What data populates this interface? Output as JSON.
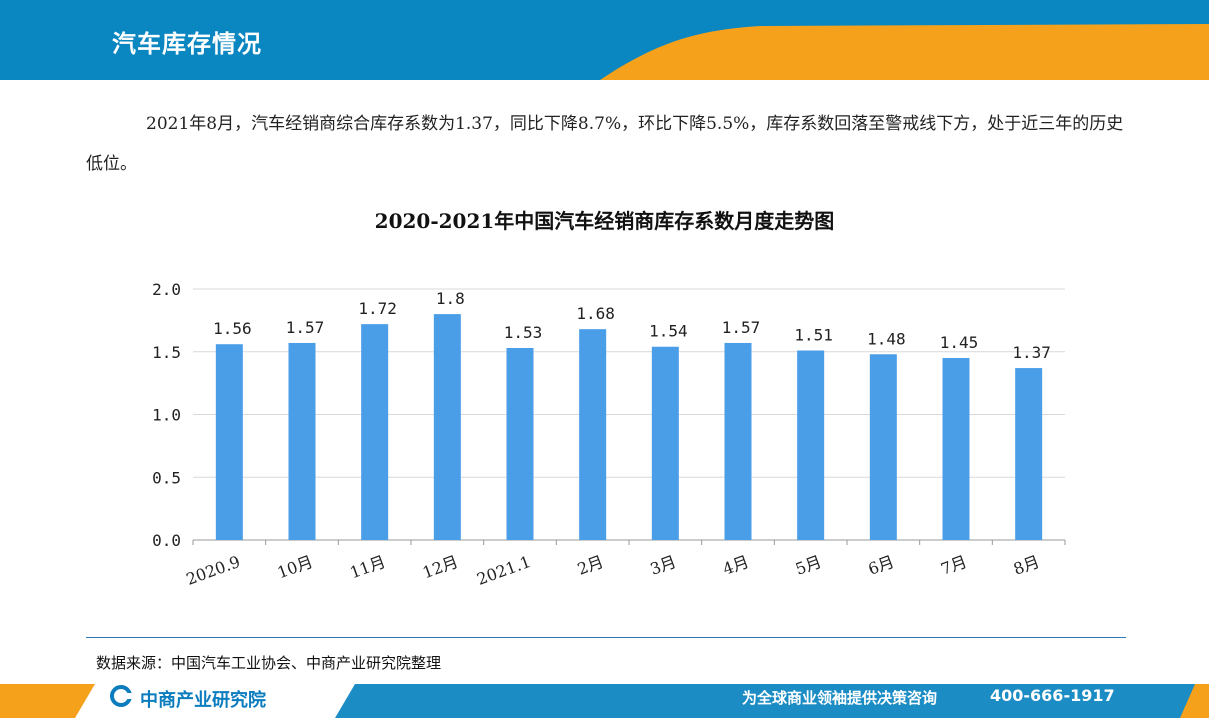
{
  "header": {
    "title": "汽车库存情况"
  },
  "paragraph": "2021年8月，汽车经销商综合库存系数为1.37，同比下降8.7%，环比下降5.5%，库存系数回落至警戒线下方，处于近三年的历史低位。",
  "chart_data": {
    "type": "bar",
    "title": "2020-2021年中国汽车经销商库存系数月度走势图",
    "categories": [
      "2020.9",
      "10月",
      "11月",
      "12月",
      "2021.1",
      "2月",
      "3月",
      "4月",
      "5月",
      "6月",
      "7月",
      "8月"
    ],
    "values": [
      1.56,
      1.57,
      1.72,
      1.8,
      1.53,
      1.68,
      1.54,
      1.57,
      1.51,
      1.48,
      1.45,
      1.37
    ],
    "value_labels": [
      "1.56",
      "1.57",
      "1.72",
      "1.8",
      "1.53",
      "1.68",
      "1.54",
      "1.57",
      "1.51",
      "1.48",
      "1.45",
      "1.37"
    ],
    "ylim": [
      0,
      2.0
    ],
    "yticks": [
      "0.0",
      "0.5",
      "1.0",
      "1.5",
      "2.0"
    ],
    "grid": true,
    "bar_color": "#4a9ee8"
  },
  "source": "数据来源：中国汽车工业协会、中商产业研究院整理",
  "footer": {
    "brand": "中商产业研究院",
    "slogan": "为全球商业领袖提供决策咨询",
    "phone": "400-666-1917"
  },
  "colors": {
    "primary_blue": "#0a86c1",
    "accent_orange": "#f5a11c",
    "footer_blue": "#1b8cc4"
  }
}
